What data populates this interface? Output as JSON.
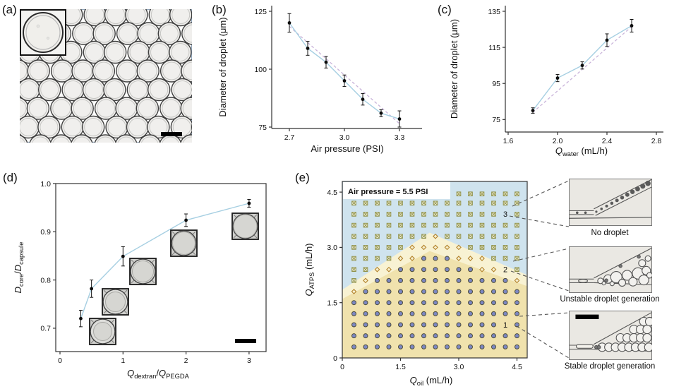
{
  "panels": {
    "a": {
      "label": "(a)"
    },
    "b": {
      "label": "(b)"
    },
    "c": {
      "label": "(c)"
    },
    "d": {
      "label": "(d)"
    },
    "e": {
      "label": "(e)"
    }
  },
  "colors": {
    "line": "#a6cfe2",
    "trend": "#c9b4da",
    "point": "#0b0b0b",
    "region_no_droplet": "#cfe3ee",
    "region_unstable": "#f8f2d3",
    "region_stable": "#f0e2ad",
    "marker_stable_fill": "#7c87c3",
    "marker_unstable_stroke": "#b3832c",
    "marker_none_stroke": "#8e9048"
  },
  "chart_data": [
    {
      "panel": "b",
      "type": "scatter",
      "xlabel": "Air pressure (PSI)",
      "ylabel": "Diameter of droplet (μm)",
      "xticks": [
        "2.7",
        "3.0",
        "3.3"
      ],
      "yticks": [
        "75",
        "100",
        "125"
      ],
      "xlim": [
        2.6,
        3.4
      ],
      "ylim": [
        73,
        126
      ],
      "x": [
        2.7,
        2.8,
        2.9,
        3.0,
        3.1,
        3.2,
        3.3
      ],
      "y": [
        120,
        109,
        103,
        95,
        87,
        81,
        78.5
      ],
      "yerr": [
        4,
        3,
        2.5,
        2.5,
        2.5,
        1.5,
        3.5
      ],
      "trend": [
        [
          2.7,
          118.5
        ],
        [
          3.3,
          76.5
        ]
      ]
    },
    {
      "panel": "c",
      "type": "scatter",
      "xlabel_parts": [
        {
          "t": "Q",
          "italic": true
        },
        {
          "t": "water",
          "sub": true
        },
        {
          "t": " (mL/h)"
        }
      ],
      "ylabel": "Diameter of droplet (μm)",
      "xticks": [
        "1.6",
        "2.0",
        "2.4",
        "2.8"
      ],
      "yticks": [
        "75",
        "95",
        "115",
        "135"
      ],
      "xlim": [
        1.6,
        2.8
      ],
      "ylim": [
        68,
        137
      ],
      "x": [
        1.8,
        2.0,
        2.2,
        2.4,
        2.6
      ],
      "y": [
        80,
        98,
        105,
        119,
        127
      ],
      "yerr": [
        1.5,
        2,
        2,
        3.5,
        3.5
      ],
      "trend": [
        [
          1.8,
          79
        ],
        [
          2.6,
          126.5
        ]
      ]
    },
    {
      "panel": "d",
      "type": "scatter",
      "xlabel_parts": [
        {
          "t": "Q",
          "italic": true
        },
        {
          "t": "dextran",
          "sub": true
        },
        {
          "t": "/"
        },
        {
          "t": "Q",
          "italic": true
        },
        {
          "t": "PEGDA",
          "sub": true
        }
      ],
      "ylabel_parts": [
        {
          "t": "D",
          "italic": true
        },
        {
          "t": "core",
          "sub": true
        },
        {
          "t": "/"
        },
        {
          "t": "D",
          "italic": true
        },
        {
          "t": "capsule",
          "sub": true
        }
      ],
      "xticks": [
        "0",
        "1",
        "2",
        "3"
      ],
      "yticks": [
        "0.7",
        "0.8",
        "0.9",
        "1.0"
      ],
      "xlim": [
        0,
        3.27
      ],
      "ylim": [
        0.65,
        1.0
      ],
      "x": [
        0.33,
        0.5,
        1,
        2,
        3
      ],
      "y": [
        0.72,
        0.782,
        0.849,
        0.924,
        0.959
      ],
      "yerr": [
        0.017,
        0.018,
        0.02,
        0.013,
        0.008
      ]
    },
    {
      "panel": "e",
      "type": "phase-scatter",
      "annotation": "Air pressure = 5.5 PSI",
      "xlabel_parts": [
        {
          "t": "Q",
          "italic": true
        },
        {
          "t": "oil",
          "sub": true
        },
        {
          "t": " (mL/h)"
        }
      ],
      "ylabel_parts": [
        {
          "t": "Q",
          "italic": true
        },
        {
          "t": "ATPS",
          "sub": true
        },
        {
          "t": " (mL/h)"
        }
      ],
      "xticks": [
        "0",
        "1.5",
        "3.0",
        "4.5"
      ],
      "yticks": [
        "0",
        "1.5",
        "3.0",
        "4.5"
      ],
      "xlim": [
        0,
        4.76
      ],
      "ylim": [
        0,
        4.79
      ],
      "regions": [
        {
          "name": "No droplet",
          "marker": "cross-square"
        },
        {
          "name": "Unstable droplet generation",
          "marker": "diamond"
        },
        {
          "name": "Stable droplet generation",
          "marker": "circle"
        }
      ],
      "boundary_no_droplet": [
        [
          0,
          1.85
        ],
        [
          2.25,
          3.4
        ],
        [
          4.76,
          2.25
        ]
      ],
      "boundary_stable": [
        [
          0,
          1.6
        ],
        [
          2.25,
          2.9
        ],
        [
          4.76,
          1.95
        ]
      ],
      "grid": {
        "x_start": 0.3,
        "x_step": 0.3,
        "x_count": 15,
        "y_start": 0.3,
        "y_step": 0.3,
        "y_count": 14,
        "top_row_y": 4.45,
        "top_row_x_start": 3.0
      },
      "callouts": [
        {
          "num": "3",
          "label": "No droplet",
          "at": [
            4.2,
            3.9
          ]
        },
        {
          "num": "2",
          "label": "Unstable droplet generation",
          "at": [
            4.2,
            2.4
          ]
        },
        {
          "num": "1",
          "label": "Stable droplet generation",
          "at": [
            4.2,
            0.9
          ]
        }
      ]
    }
  ]
}
